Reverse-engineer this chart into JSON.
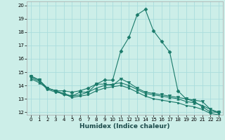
{
  "xlabel": "Humidex (Indice chaleur)",
  "ylabel": "",
  "xlim": [
    -0.5,
    23.5
  ],
  "ylim": [
    11.8,
    20.3
  ],
  "yticks": [
    12,
    13,
    14,
    15,
    16,
    17,
    18,
    19,
    20
  ],
  "xticks": [
    0,
    1,
    2,
    3,
    4,
    5,
    6,
    7,
    8,
    9,
    10,
    11,
    12,
    13,
    14,
    15,
    16,
    17,
    18,
    19,
    20,
    21,
    22,
    23
  ],
  "background_color": "#cceee8",
  "grid_color": "#aadddd",
  "line_color": "#1a7a6a",
  "series": [
    {
      "x": [
        0,
        1,
        2,
        3,
        4,
        5,
        6,
        7,
        8,
        9,
        10,
        11,
        12,
        13,
        14,
        15,
        16,
        17,
        18,
        19,
        20,
        21,
        22,
        23
      ],
      "y": [
        14.7,
        14.4,
        13.8,
        13.6,
        13.6,
        13.5,
        13.6,
        13.8,
        14.1,
        14.4,
        14.4,
        16.6,
        17.6,
        19.3,
        19.7,
        18.1,
        17.3,
        16.5,
        13.6,
        13.0,
        12.8,
        12.4,
        12.0,
        12.0
      ],
      "marker": "D",
      "markersize": 2.5
    },
    {
      "x": [
        0,
        1,
        2,
        3,
        4,
        5,
        6,
        7,
        8,
        9,
        10,
        11,
        12,
        13,
        14,
        15,
        16,
        17,
        18,
        19,
        20,
        21,
        22,
        23
      ],
      "y": [
        14.7,
        14.4,
        13.8,
        13.6,
        13.3,
        13.2,
        13.5,
        13.5,
        14.1,
        14.1,
        14.0,
        14.5,
        14.2,
        13.8,
        13.5,
        13.4,
        13.3,
        13.2,
        13.1,
        13.0,
        12.9,
        12.8,
        12.2,
        12.0
      ],
      "marker": "v",
      "markersize": 3.0
    },
    {
      "x": [
        0,
        1,
        2,
        3,
        4,
        5,
        6,
        7,
        8,
        9,
        10,
        11,
        12,
        13,
        14,
        15,
        16,
        17,
        18,
        19,
        20,
        21,
        22,
        23
      ],
      "y": [
        14.5,
        14.2,
        13.8,
        13.6,
        13.4,
        13.2,
        13.3,
        13.5,
        13.8,
        14.0,
        14.1,
        14.2,
        14.0,
        13.7,
        13.4,
        13.3,
        13.2,
        13.1,
        13.0,
        12.8,
        12.7,
        12.5,
        12.2,
        11.9
      ],
      "marker": "^",
      "markersize": 2.5
    },
    {
      "x": [
        0,
        1,
        2,
        3,
        4,
        5,
        6,
        7,
        8,
        9,
        10,
        11,
        12,
        13,
        14,
        15,
        16,
        17,
        18,
        19,
        20,
        21,
        22,
        23
      ],
      "y": [
        14.6,
        14.3,
        13.7,
        13.5,
        13.4,
        13.1,
        13.2,
        13.3,
        13.6,
        13.8,
        13.9,
        14.0,
        13.8,
        13.5,
        13.2,
        13.0,
        12.9,
        12.8,
        12.7,
        12.5,
        12.4,
        12.2,
        11.9,
        11.8
      ],
      "marker": "s",
      "markersize": 1.8
    }
  ]
}
